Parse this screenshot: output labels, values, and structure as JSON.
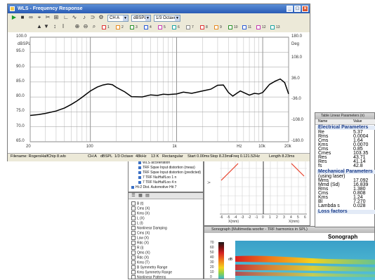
{
  "main_window": {
    "title": "WLS - Frequency Response",
    "channel": "CH A",
    "unit": "dBSPL",
    "smoothing": "1/3 Octave",
    "y_left_unit": "dBSPL",
    "y_right_unit": "Deg",
    "x_unit": "Hz",
    "legend_numbers": [
      "1",
      "2",
      "3",
      "4",
      "5",
      "6",
      "7",
      "8",
      "9",
      "10",
      "11",
      "12",
      "13"
    ],
    "status": {
      "filename": "Filename: RogersHalfChip 8.wlo",
      "channel": "CH A",
      "unit": "dBSPL",
      "smoothing": "1/3 Octave",
      "rate": "48kHz",
      "bits": "13 K",
      "window": "Rectangular",
      "start": "Start 0.00ms",
      "stop": "Stop 8.23ms",
      "freq": "Freq 0.121.52Hz",
      "length": "Length 8.23ms"
    }
  },
  "chart_data": {
    "type": "line",
    "xscale": "log",
    "xlim": [
      20,
      20000
    ],
    "ylim_left": [
      65,
      100
    ],
    "ylim_right": [
      -180,
      180
    ],
    "x_ticks": [
      "20",
      "100",
      "1k",
      "10k",
      "20k"
    ],
    "y_ticks_left": [
      "100.0",
      "95.0",
      "90.0",
      "85.0",
      "80.0",
      "75.0",
      "70.0",
      "65.0"
    ],
    "y_ticks_right": [
      "180.0",
      "",
      "108.0",
      "",
      "36.0",
      "",
      "-36.0",
      "",
      "-108.0",
      "",
      "-180.0"
    ],
    "grid": true,
    "series": [
      {
        "x": [
          20,
          25,
          30,
          40,
          50,
          60,
          70,
          80,
          90,
          100,
          120,
          140,
          160,
          180,
          200,
          250,
          300,
          400,
          500,
          600,
          700,
          800,
          1000,
          1200,
          1500,
          2000,
          2500,
          3000,
          3500,
          4000,
          4500,
          5000,
          5500,
          6000,
          7000,
          8000,
          9000,
          10000,
          12000,
          14000,
          16000,
          18000,
          20000
        ],
        "y": [
          73.8,
          74.1,
          74.5,
          75.3,
          76.3,
          77.5,
          78.7,
          79.9,
          81.0,
          82.0,
          83.3,
          84.0,
          84.3,
          84.1,
          83.2,
          81.7,
          80.1,
          80.0,
          80.7,
          80.5,
          80.9,
          80.8,
          81.0,
          81.6,
          81.2,
          82.0,
          82.6,
          83.9,
          84.0,
          81.5,
          80.3,
          81.2,
          82.0,
          81.5,
          80.6,
          81.2,
          81.0,
          81.5,
          84.2,
          85.3,
          86.0,
          84.8,
          81.0
        ]
      }
    ]
  },
  "tree_panel": {
    "items": [
      "WLS acceleration",
      "TRF Sqwe Input distortion (meas)",
      "TRF Sqwe Input distortion (predicted)",
      "7 TRF NuiHalfLoo 1 n",
      "7 TRF NuiHalfLoo 4 n",
      "Hi-2 Dist. Automotive Hit 7"
    ]
  },
  "param_list": {
    "items": [
      "B (t)",
      "Cms (X)",
      "Kms (X)",
      "L (X)",
      "L (I)",
      "Nonlinear Damping",
      "Cms (X)",
      "Lsw (X)",
      "Rdc (X)",
      "R (i)",
      "Qms (X)",
      "Rdc (X)",
      "Kms (T)",
      "B Symmetry Range",
      "Kms Symmetry Range",
      "Nonlinear Patterns"
    ]
  },
  "nonlin_chart": {
    "ylabel": "V",
    "x_ticks": [
      "-6",
      "-5",
      "-4",
      "-3",
      "-2",
      "-1",
      "0",
      "1",
      "2",
      "3",
      "4",
      "5",
      "6"
    ],
    "xlabel_left": "X(mm)",
    "xlabel_right": "X(mm)"
  },
  "param_table": {
    "title": "Table Linear Parameters (n)",
    "col_name": "Name",
    "col_value": "Value",
    "sections": [
      {
        "header": "Electrical Parameters",
        "rows": [
          [
            "Re",
            "5.37"
          ],
          [
            "Rms",
            "0.0004"
          ],
          [
            "Cms",
            "1.64"
          ],
          [
            "Kms",
            "0.0070"
          ],
          [
            "Cms",
            "0.85"
          ],
          [
            "Cmes",
            "103.35"
          ],
          [
            "Res",
            "43.71"
          ],
          [
            "Res",
            "41.14"
          ],
          [
            "fs",
            "42.8"
          ]
        ]
      },
      {
        "header": "Mechanical Parameters",
        "rows": [
          [
            "(using laser)",
            ""
          ],
          [
            "Mms",
            "17.092"
          ],
          [
            "Mmd (Sd)",
            "16.839"
          ],
          [
            "Rms",
            "1.380"
          ],
          [
            "Cms",
            "0.808"
          ],
          [
            "Kms",
            "1.24"
          ],
          [
            "Bl",
            "7.270"
          ],
          [
            "Lambda s",
            "0.028"
          ]
        ]
      },
      {
        "header": "Loss factors",
        "rows": []
      }
    ]
  },
  "sonograph": {
    "window_title": "Sonograph (Multimedia woofer - TRF harmonics in SPL)",
    "title": "Sonograph",
    "y_ticks": [
      "70",
      "60",
      "50",
      "40",
      "30",
      "20",
      "10",
      "0"
    ],
    "side_label": "dB"
  },
  "colors": {
    "title_bar": "#2a5bb5",
    "curve": "#000000",
    "grid": "#b0b0b0",
    "red_curve": "#e8412a"
  }
}
